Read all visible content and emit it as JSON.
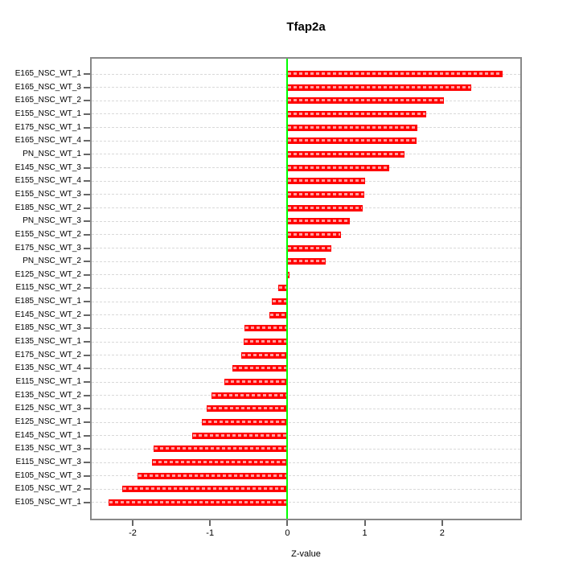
{
  "figure": {
    "title": "Tfap2a",
    "x_axis_title": "Z-value"
  },
  "chart_data": {
    "type": "bar",
    "orientation": "horizontal",
    "title": "Tfap2a",
    "xlabel": "Z-value",
    "ylabel": "",
    "categories": [
      "E165_NSC_WT_1",
      "E165_NSC_WT_3",
      "E165_NSC_WT_2",
      "E155_NSC_WT_1",
      "E175_NSC_WT_1",
      "E165_NSC_WT_4",
      "PN_NSC_WT_1",
      "E145_NSC_WT_3",
      "E155_NSC_WT_4",
      "E155_NSC_WT_3",
      "E185_NSC_WT_2",
      "PN_NSC_WT_3",
      "E155_NSC_WT_2",
      "E175_NSC_WT_3",
      "PN_NSC_WT_2",
      "E125_NSC_WT_2",
      "E115_NSC_WT_2",
      "E185_NSC_WT_1",
      "E145_NSC_WT_2",
      "E185_NSC_WT_3",
      "E135_NSC_WT_1",
      "E175_NSC_WT_2",
      "E135_NSC_WT_4",
      "E115_NSC_WT_1",
      "E135_NSC_WT_2",
      "E125_NSC_WT_3",
      "E125_NSC_WT_1",
      "E145_NSC_WT_1",
      "E135_NSC_WT_3",
      "E115_NSC_WT_3",
      "E105_NSC_WT_3",
      "E105_NSC_WT_2",
      "E105_NSC_WT_1"
    ],
    "values": [
      2.78,
      2.38,
      2.02,
      1.79,
      1.68,
      1.67,
      1.51,
      1.32,
      1.0,
      0.99,
      0.97,
      0.81,
      0.69,
      0.57,
      0.49,
      0.03,
      -0.12,
      -0.2,
      -0.23,
      -0.55,
      -0.57,
      -0.6,
      -0.71,
      -0.81,
      -0.98,
      -1.04,
      -1.11,
      -1.23,
      -1.73,
      -1.75,
      -1.94,
      -2.14,
      -2.31
    ],
    "xlim": [
      -2.53,
      3.01
    ],
    "x_ticks": [
      "-2",
      "-1",
      "0",
      "1",
      "2"
    ],
    "x_tick_values": [
      -2,
      -1,
      0,
      1,
      2
    ],
    "zero_line_x": 0,
    "grid": "horizontal dashed line per category",
    "legend": "none",
    "colors": {
      "bar": "#FF0000",
      "bar_inner_dash": "#FF9C9C",
      "zero_line": "#00FF00",
      "gridline": "#D9D9D9",
      "box_border": "#888888",
      "tick": "#666666",
      "text": "#000000",
      "background": "#FFFFFF"
    }
  }
}
